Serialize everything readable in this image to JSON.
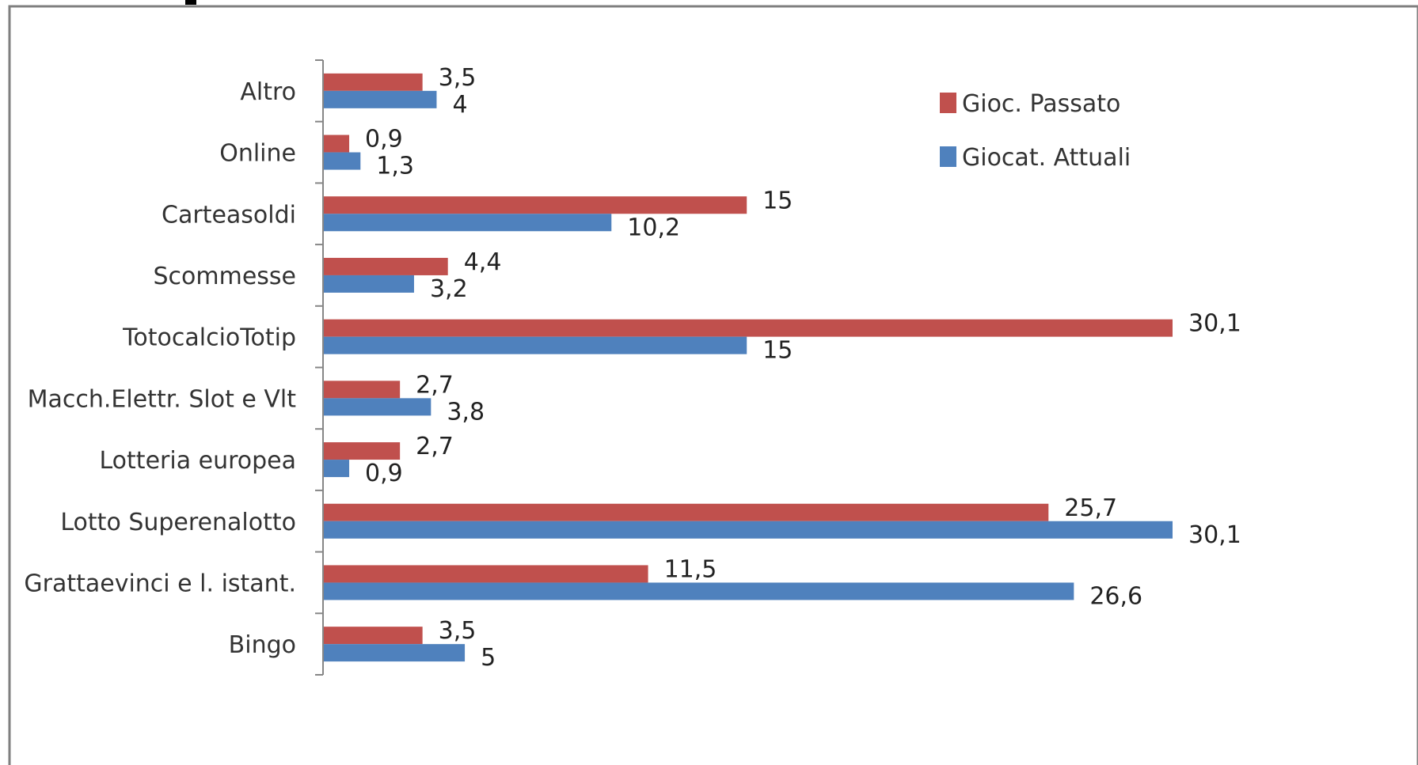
{
  "chart_data": {
    "type": "bar",
    "orientation": "horizontal",
    "categories": [
      "Altro",
      "Online",
      "Carteasoldi",
      "Scommesse",
      "TotocalcioTotip",
      "Macch.Elettr. Slot e Vlt",
      "Lotteria europea",
      "Lotto Superenalotto",
      "Grattaevinci e l. istant.",
      "Bingo"
    ],
    "series": [
      {
        "name": "Gioc. Passato",
        "color": "#c0504d",
        "values": [
          3.5,
          0.9,
          15,
          4.4,
          30.1,
          2.7,
          2.7,
          25.7,
          11.5,
          3.5
        ],
        "labels": [
          "3,5",
          "0,9",
          "15",
          "4,4",
          "30,1",
          "2,7",
          "2,7",
          "25,7",
          "11,5",
          "3,5"
        ]
      },
      {
        "name": "Giocat. Attuali",
        "color": "#4f81bd",
        "values": [
          4,
          1.3,
          10.2,
          3.2,
          15,
          3.8,
          0.9,
          30.1,
          26.6,
          5
        ],
        "labels": [
          "4",
          "1,3",
          "10,2",
          "3,2",
          "15",
          "3,8",
          "0,9",
          "30,1",
          "26,6",
          "5"
        ]
      }
    ],
    "xlim": [
      0,
      30.1
    ],
    "grid": false,
    "legend_position": "top-right"
  }
}
